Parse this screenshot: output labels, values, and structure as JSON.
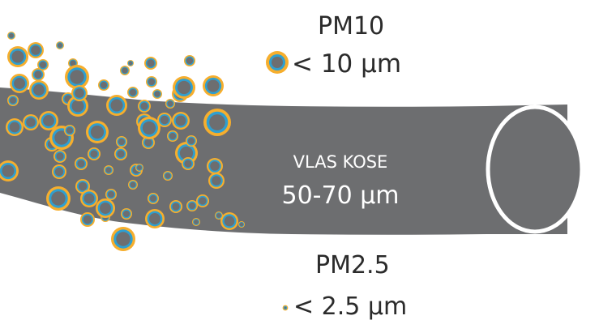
{
  "pm10": {
    "title": "PM10",
    "size": "< 10 µm"
  },
  "pm25": {
    "title": "PM2.5",
    "size": "< 2.5 µm"
  },
  "hair": {
    "title": "VLAS KOSE",
    "size": "50-70 µm"
  },
  "colors": {
    "hair": "#6d6e70",
    "hair_end_outline": "#ffffff",
    "particle_outer": "#f6ae2d",
    "particle_ring": "#2f9fd0",
    "particle_core": "#6d6e70",
    "text_dark": "#2b2b2b",
    "text_light": "#ffffff"
  }
}
